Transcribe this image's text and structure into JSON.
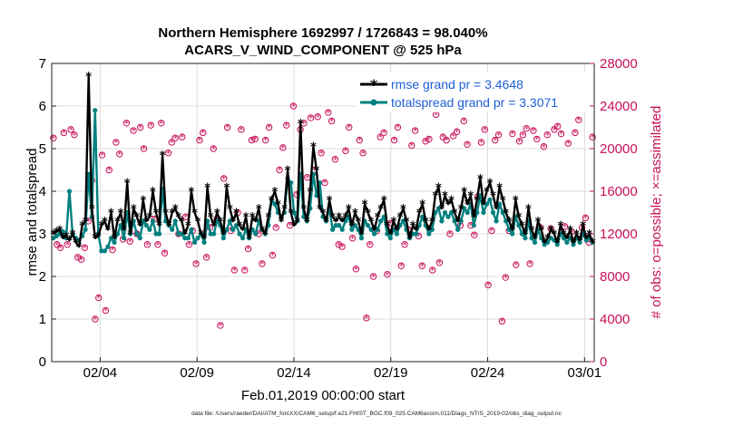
{
  "chart_data": {
    "type": "line",
    "title": [
      "Northern Hemisphere 1692997 / 1726843 = 98.040%",
      "ACARS_V_WIND_COMPONENT @ 525 hPa"
    ],
    "xlabel": "Feb.01,2019 00:00:00 start",
    "ylabel": "rmse and totalspread",
    "y2label": "# of obs: o=possible; ×=assimilated",
    "footnote": "data file: /Users/raeder/DAI/ATM_forcXX/CAM6_setup/f.e21.FHIST_BGC.f09_025.CAM6assim.011/Diags_NTrS_2019-02/obs_diag_output.nc",
    "xlim": [
      0.5,
      28.5
    ],
    "ylim": [
      0,
      7
    ],
    "y2lim": [
      0,
      28000
    ],
    "xticks": [
      {
        "pos": 3,
        "label": "02/04"
      },
      {
        "pos": 8,
        "label": "02/09"
      },
      {
        "pos": 13,
        "label": "02/14"
      },
      {
        "pos": 18,
        "label": "02/19"
      },
      {
        "pos": 23,
        "label": "02/24"
      },
      {
        "pos": 28,
        "label": "03/01"
      }
    ],
    "yticks": [
      "0",
      "1",
      "2",
      "3",
      "4",
      "5",
      "6",
      "7"
    ],
    "y2ticks": [
      "0",
      "4000",
      "8000",
      "12000",
      "16000",
      "20000",
      "24000",
      "28000"
    ],
    "colors": {
      "rmse": "#000000",
      "spread": "#00807f",
      "obs": "#c8105a",
      "legend_text": "#1f5fd6"
    },
    "series": [
      {
        "name": "rmse",
        "legend": "rmse grand pr = 3.4648",
        "values": [
          3.0,
          3.05,
          3.1,
          2.9,
          2.95,
          2.85,
          3.0,
          2.8,
          2.7,
          3.2,
          3.3,
          6.7,
          3.6,
          2.9,
          2.95,
          3.2,
          3.3,
          3.1,
          3.5,
          2.9,
          3.3,
          3.5,
          3.1,
          4.2,
          3.0,
          3.6,
          3.4,
          3.2,
          3.8,
          3.3,
          3.4,
          4.0,
          3.5,
          3.2,
          4.85,
          3.5,
          3.2,
          3.5,
          3.6,
          3.4,
          3.3,
          3.0,
          3.2,
          4.0,
          3.5,
          3.3,
          3.0,
          2.9,
          4.1,
          3.4,
          3.2,
          3.5,
          3.3,
          3.0,
          4.1,
          3.6,
          3.3,
          3.5,
          3.2,
          3.1,
          3.4,
          2.9,
          3.4,
          3.3,
          3.6,
          3.1,
          3.0,
          3.4,
          3.8,
          4.0,
          3.7,
          3.3,
          3.6,
          4.5,
          3.5,
          3.2,
          3.3,
          5.6,
          3.6,
          3.3,
          4.0,
          5.05,
          4.5,
          3.6,
          3.5,
          3.3,
          3.8,
          3.4,
          3.3,
          3.4,
          3.3,
          3.4,
          3.6,
          3.2,
          3.5,
          3.3,
          3.0,
          3.7,
          3.5,
          3.3,
          3.1,
          3.4,
          3.6,
          3.8,
          3.2,
          3.0,
          3.3,
          3.1,
          3.4,
          3.6,
          3.3,
          2.9,
          3.2,
          3.1,
          3.5,
          3.7,
          3.3,
          3.1,
          3.3,
          3.9,
          4.1,
          3.6,
          3.9,
          3.7,
          3.8,
          3.5,
          3.3,
          3.6,
          4.0,
          3.7,
          3.9,
          3.4,
          3.8,
          4.3,
          3.7,
          4.0,
          4.2,
          3.9,
          3.6,
          4.1,
          3.8,
          3.5,
          3.3,
          3.1,
          3.8,
          3.4,
          3.2,
          3.0,
          3.6,
          3.1,
          2.9,
          3.3,
          3.1,
          2.8,
          2.9,
          3.1,
          3.0,
          2.8,
          3.2,
          3.0,
          2.9,
          3.1,
          2.8,
          3.0,
          2.85,
          3.2,
          2.9,
          3.0,
          2.8
        ]
      },
      {
        "name": "totalspread",
        "legend": "totalspread grand pr = 3.3071",
        "values": [
          2.9,
          2.95,
          3.0,
          3.05,
          2.9,
          4.0,
          3.0,
          2.9,
          2.85,
          2.95,
          3.1,
          4.4,
          3.4,
          5.9,
          3.0,
          2.6,
          2.6,
          2.7,
          2.9,
          2.8,
          3.0,
          3.2,
          2.9,
          3.5,
          3.0,
          3.3,
          3.0,
          2.9,
          3.3,
          3.2,
          3.1,
          3.3,
          3.0,
          3.0,
          4.05,
          3.3,
          3.2,
          3.1,
          3.3,
          3.0,
          3.0,
          2.9,
          2.9,
          3.1,
          2.8,
          2.9,
          3.0,
          2.8,
          3.3,
          3.0,
          3.0,
          3.3,
          3.2,
          2.9,
          3.1,
          3.3,
          3.1,
          3.2,
          3.0,
          2.9,
          3.1,
          2.9,
          3.1,
          3.0,
          3.3,
          3.1,
          3.0,
          3.2,
          3.8,
          3.7,
          3.5,
          3.4,
          3.5,
          4.3,
          4.2,
          3.5,
          3.3,
          4.4,
          3.4,
          3.3,
          3.6,
          4.4,
          3.9,
          4.2,
          3.4,
          3.3,
          3.6,
          3.1,
          3.2,
          3.2,
          3.1,
          3.3,
          3.4,
          3.1,
          3.2,
          3.1,
          2.9,
          3.3,
          3.2,
          3.1,
          3.0,
          3.1,
          3.3,
          3.4,
          3.0,
          2.9,
          3.1,
          3.0,
          3.2,
          3.3,
          3.1,
          2.9,
          3.0,
          3.0,
          3.2,
          3.4,
          3.2,
          3.0,
          3.1,
          3.5,
          3.6,
          3.3,
          3.5,
          3.4,
          3.5,
          3.3,
          3.1,
          3.3,
          3.6,
          3.5,
          3.7,
          3.2,
          3.5,
          3.9,
          3.5,
          3.7,
          3.8,
          3.5,
          3.3,
          3.7,
          3.5,
          3.3,
          3.1,
          3.0,
          3.4,
          3.2,
          3.0,
          2.9,
          3.3,
          2.9,
          2.8,
          3.1,
          2.9,
          2.75,
          2.8,
          2.9,
          2.85,
          2.75,
          3.0,
          2.9,
          2.8,
          2.9,
          2.75,
          2.9,
          2.8,
          3.0,
          2.85,
          2.9,
          2.8
        ]
      }
    ],
    "obs_possible": [
      21000,
      11000,
      10700,
      21500,
      11000,
      21800,
      21300,
      9800,
      9600,
      10700,
      13200,
      17000,
      4000,
      6000,
      19400,
      4800,
      18000,
      10500,
      20600,
      19500,
      11500,
      22400,
      11300,
      21700,
      12000,
      22000,
      20000,
      11000,
      22200,
      13400,
      11000,
      22400,
      10200,
      19600,
      20600,
      21000,
      12000,
      21100,
      13600,
      11000,
      12300,
      9200,
      20800,
      21500,
      9800,
      12600,
      20000,
      13400,
      3400,
      17200,
      22000,
      12300,
      8600,
      14000,
      21800,
      8600,
      10600,
      20800,
      20900,
      12000,
      9200,
      20800,
      22000,
      10000,
      12600,
      18000,
      20100,
      22200,
      12800,
      24000,
      15700,
      21800,
      22400,
      17300,
      22900,
      18000,
      23000,
      19600,
      16800,
      23400,
      22600,
      19000,
      11000,
      10800,
      19800,
      22000,
      11600,
      8700,
      20800,
      19600,
      4100,
      11000,
      8000,
      12300,
      21100,
      21500,
      8200,
      13000,
      20800,
      22000,
      9000,
      11000,
      12400,
      20300,
      21700,
      11800,
      9000,
      20700,
      20900,
      8600,
      23200,
      9300,
      21100,
      20800,
      12000,
      21200,
      21600,
      12800,
      22600,
      20400,
      12800,
      11900,
      15500,
      20600,
      21800,
      7200,
      12300,
      20800,
      21300,
      3800,
      7900,
      12300,
      21400,
      9100,
      20700,
      21300,
      21900,
      9200,
      21700,
      20900,
      12600,
      20200,
      21300,
      12500,
      21800,
      22100,
      21400,
      12700,
      20500,
      12200,
      21500,
      22700,
      12600,
      13500,
      11200,
      21100
    ]
  }
}
